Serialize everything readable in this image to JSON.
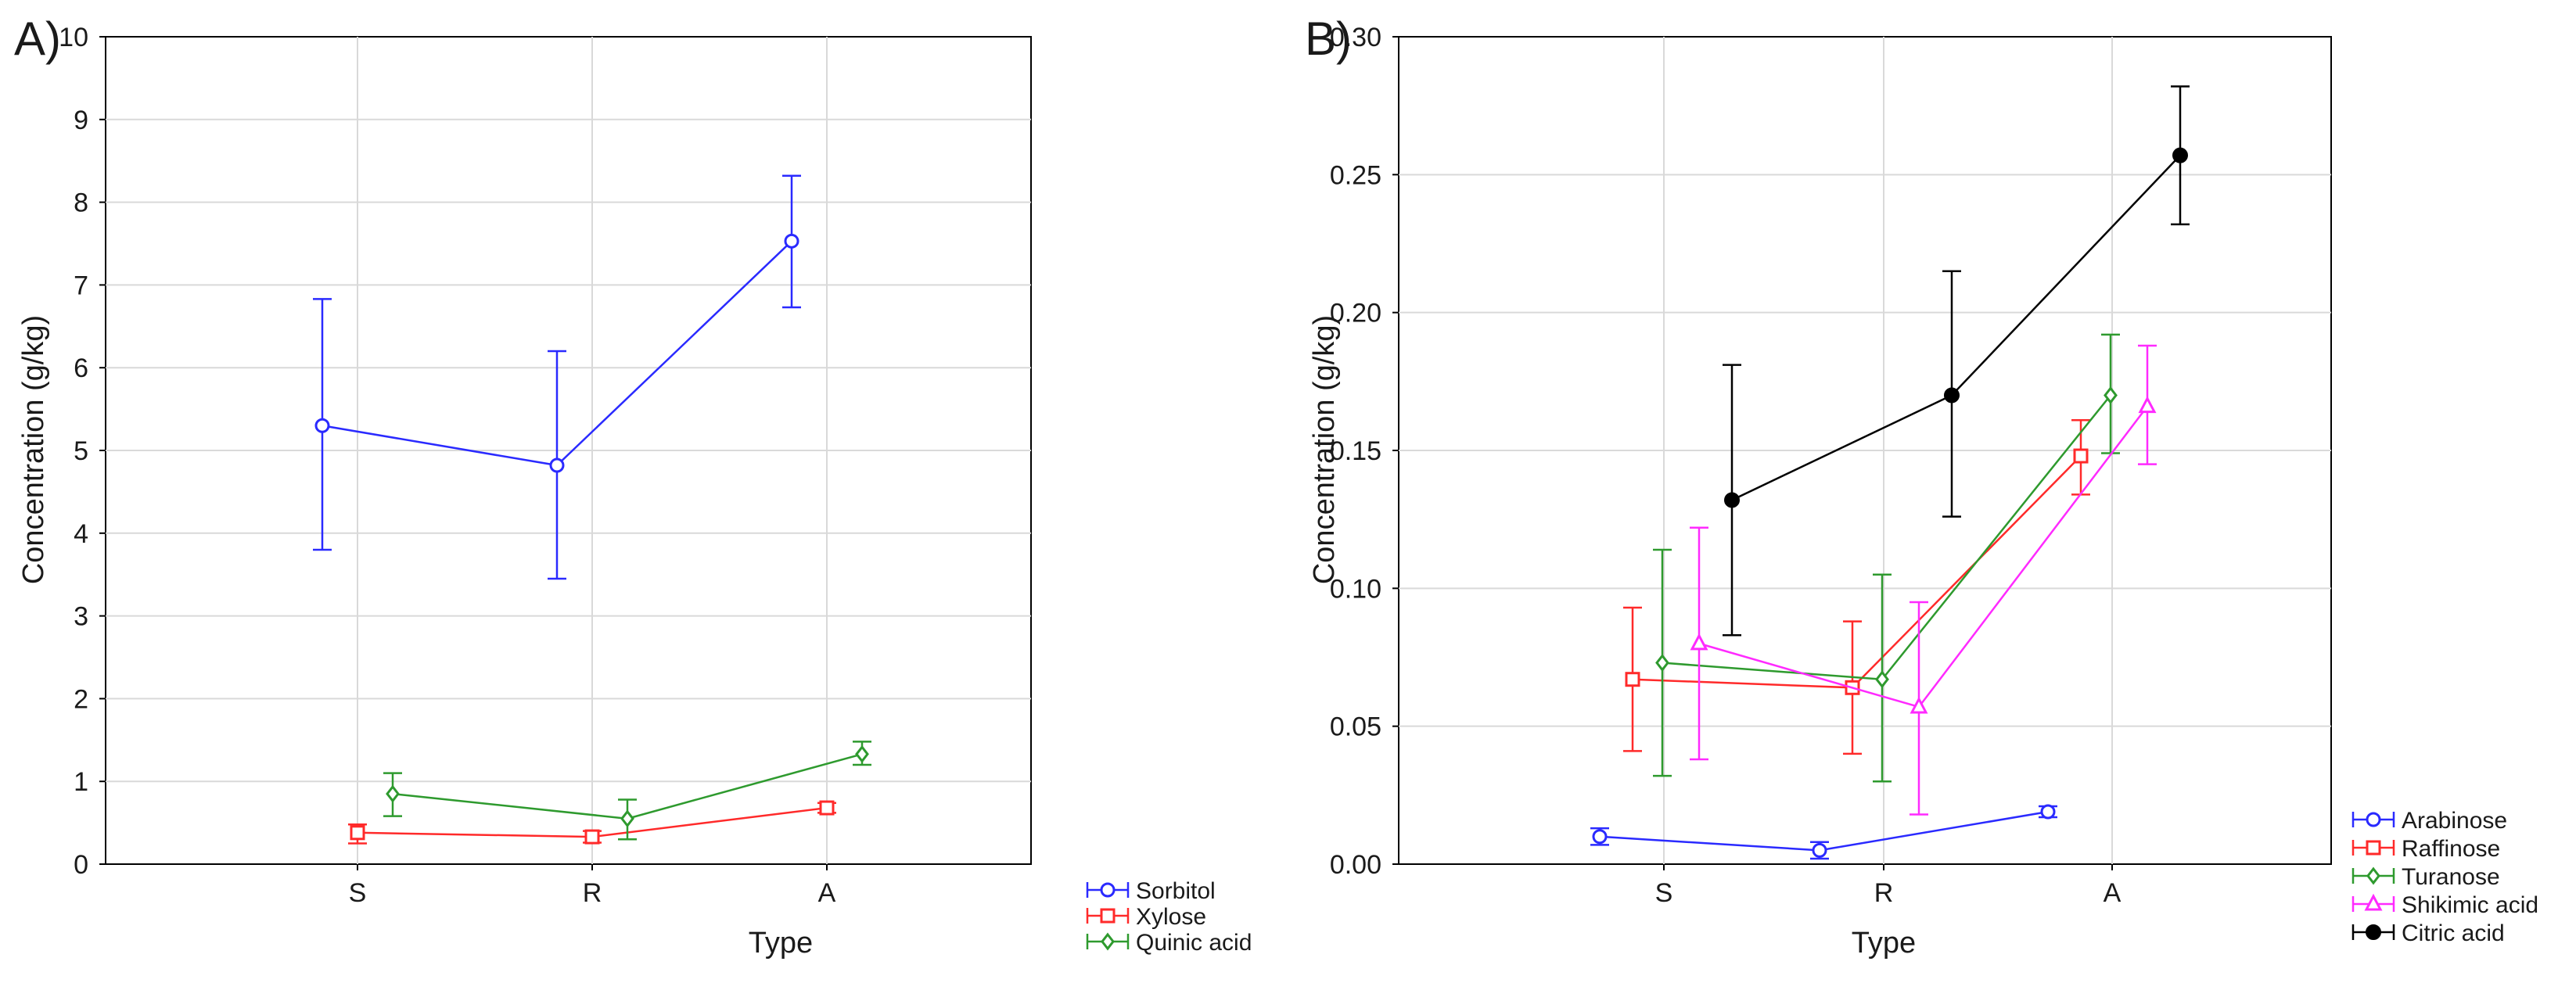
{
  "chart_data": [
    {
      "panel_label": "A)",
      "type": "line",
      "categories": [
        "S",
        "R",
        "A"
      ],
      "xlabel": "Type",
      "ylabel": "Concentration (g/kg)",
      "ylim": [
        0,
        10
      ],
      "yticks": [
        "0",
        "1",
        "2",
        "3",
        "4",
        "5",
        "6",
        "7",
        "8",
        "9",
        "10"
      ],
      "grid": true,
      "legend_position": "bottom-right, outside plot",
      "series": [
        {
          "name": "Sorbitol",
          "color": "#2a2aff",
          "marker": "circle",
          "values": [
            5.3,
            4.82,
            7.53
          ],
          "err_low": [
            3.8,
            3.45,
            6.73
          ],
          "err_high": [
            6.83,
            6.2,
            8.32
          ]
        },
        {
          "name": "Xylose",
          "color": "#ff2a2a",
          "marker": "square",
          "values": [
            0.38,
            0.33,
            0.68
          ],
          "err_low": [
            0.25,
            0.26,
            0.62
          ],
          "err_high": [
            0.48,
            0.4,
            0.74
          ]
        },
        {
          "name": "Quinic acid",
          "color": "#2e9a2e",
          "marker": "diamond",
          "values": [
            0.85,
            0.55,
            1.33
          ],
          "err_low": [
            0.58,
            0.3,
            1.2
          ],
          "err_high": [
            1.1,
            0.78,
            1.48
          ]
        }
      ]
    },
    {
      "panel_label": "B)",
      "type": "line",
      "categories": [
        "S",
        "R",
        "A"
      ],
      "xlabel": "Type",
      "ylabel": "Concentration (g/kg)",
      "ylim": [
        0,
        0.3
      ],
      "yticks": [
        "0.00",
        "0.05",
        "0.10",
        "0.15",
        "0.20",
        "0.25",
        "0.30"
      ],
      "grid": true,
      "legend_position": "bottom-right, outside plot",
      "series": [
        {
          "name": "Arabinose",
          "color": "#2a2aff",
          "marker": "circle",
          "values": [
            0.01,
            0.005,
            0.019
          ],
          "err_low": [
            0.007,
            0.002,
            0.017
          ],
          "err_high": [
            0.013,
            0.008,
            0.021
          ]
        },
        {
          "name": "Raffinose",
          "color": "#ff2a2a",
          "marker": "square",
          "values": [
            0.067,
            0.064,
            0.148
          ],
          "err_low": [
            0.041,
            0.04,
            0.134
          ],
          "err_high": [
            0.093,
            0.088,
            0.161
          ]
        },
        {
          "name": "Turanose",
          "color": "#2e9a2e",
          "marker": "diamond",
          "values": [
            0.073,
            0.067,
            0.17
          ],
          "err_low": [
            0.032,
            0.03,
            0.149
          ],
          "err_high": [
            0.114,
            0.105,
            0.192
          ]
        },
        {
          "name": "Shikimic acid",
          "color": "#ff2aff",
          "marker": "triangle",
          "values": [
            0.08,
            0.057,
            0.166
          ],
          "err_low": [
            0.038,
            0.018,
            0.145
          ],
          "err_high": [
            0.122,
            0.095,
            0.188
          ]
        },
        {
          "name": "Citric acid",
          "color": "#000000",
          "marker": "filled-circle",
          "values": [
            0.132,
            0.17,
            0.257
          ],
          "err_low": [
            0.083,
            0.126,
            0.232
          ],
          "err_high": [
            0.181,
            0.215,
            0.282
          ]
        }
      ]
    }
  ]
}
